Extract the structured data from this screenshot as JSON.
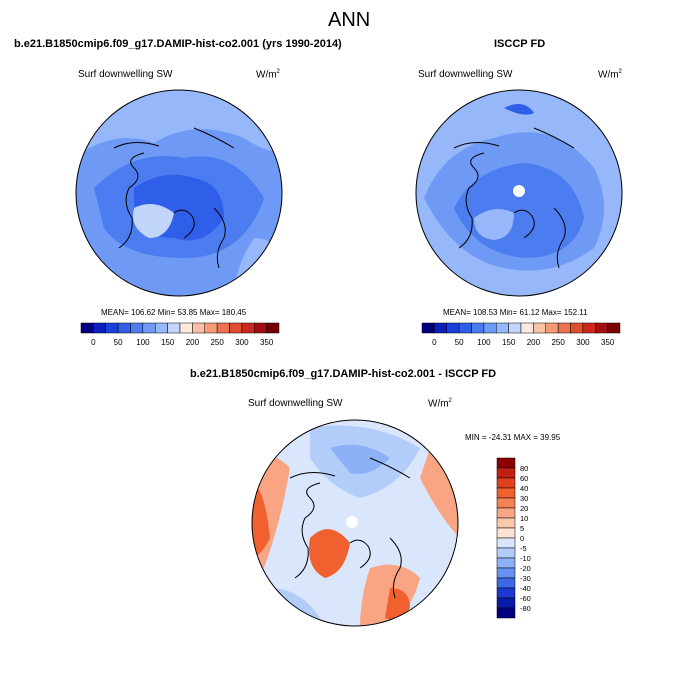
{
  "figure": {
    "title": "ANN"
  },
  "panels": [
    {
      "title": "b.e21.B1850cmip6.f09_g17.DAMIP-hist-co2.001 (yrs 1990-2014)",
      "variable": "Surf downwelling SW",
      "units_base": "W/m",
      "units_exp": "2",
      "stats": "MEAN= 106.62  Min=  53.85  Max= 180.45"
    },
    {
      "title": "ISCCP FD",
      "variable": "Surf downwelling SW",
      "units_base": "W/m",
      "units_exp": "2",
      "stats": "MEAN= 108.53  Min=  61.12  Max= 152.11"
    },
    {
      "title": "b.e21.B1850cmip6.f09_g17.DAMIP-hist-co2.001 - ISCCP FD",
      "variable": "Surf downwelling SW",
      "units_base": "W/m",
      "units_exp": "2",
      "stats": "MIN = -24.31  MAX =  39.95"
    }
  ],
  "colorbar_abs": {
    "labels": [
      "0",
      "50",
      "100",
      "150",
      "200",
      "250",
      "300",
      "350"
    ],
    "colors": [
      "#00007f",
      "#0b1fbf",
      "#1a3fdf",
      "#2f5fe9",
      "#4c7df0",
      "#6e9af5",
      "#96b8fa",
      "#c2d6fc",
      "#fde9df",
      "#f9c2a6",
      "#f49b78",
      "#ec7350",
      "#e04e2f",
      "#c9281b",
      "#a01010",
      "#780000"
    ]
  },
  "colorbar_diff": {
    "labels": [
      "80",
      "60",
      "40",
      "30",
      "20",
      "10",
      "5",
      "0",
      "-5",
      "-10",
      "-20",
      "-30",
      "-40",
      "-60",
      "-80"
    ],
    "colors": [
      "#8b0000",
      "#c1220f",
      "#e0401f",
      "#f1602f",
      "#f68155",
      "#f9a584",
      "#fbc7ad",
      "#fde3d6",
      "#d9e6fc",
      "#b3cdfa",
      "#8cb1f7",
      "#6690f1",
      "#3c67e6",
      "#1838cf",
      "#0a1aa8",
      "#000080"
    ]
  },
  "map_colors": {
    "ocean_model": "#4c7df0",
    "ocean_model_light": "#6e9af5",
    "ocean_model_dark": "#2f5fe9",
    "ice_light": "#c2d6fc",
    "ocean_obs": "#4c7df0",
    "ocean_obs_light": "#6e9af5",
    "ocean_obs_edge": "#96b8fa",
    "diff_blue": "#b3cdfa",
    "diff_blue_dark": "#8cb1f7",
    "diff_neutral": "#d9e6fc",
    "diff_red": "#f9a584",
    "diff_red_dark": "#f1602f",
    "missing": "#ffffff"
  }
}
